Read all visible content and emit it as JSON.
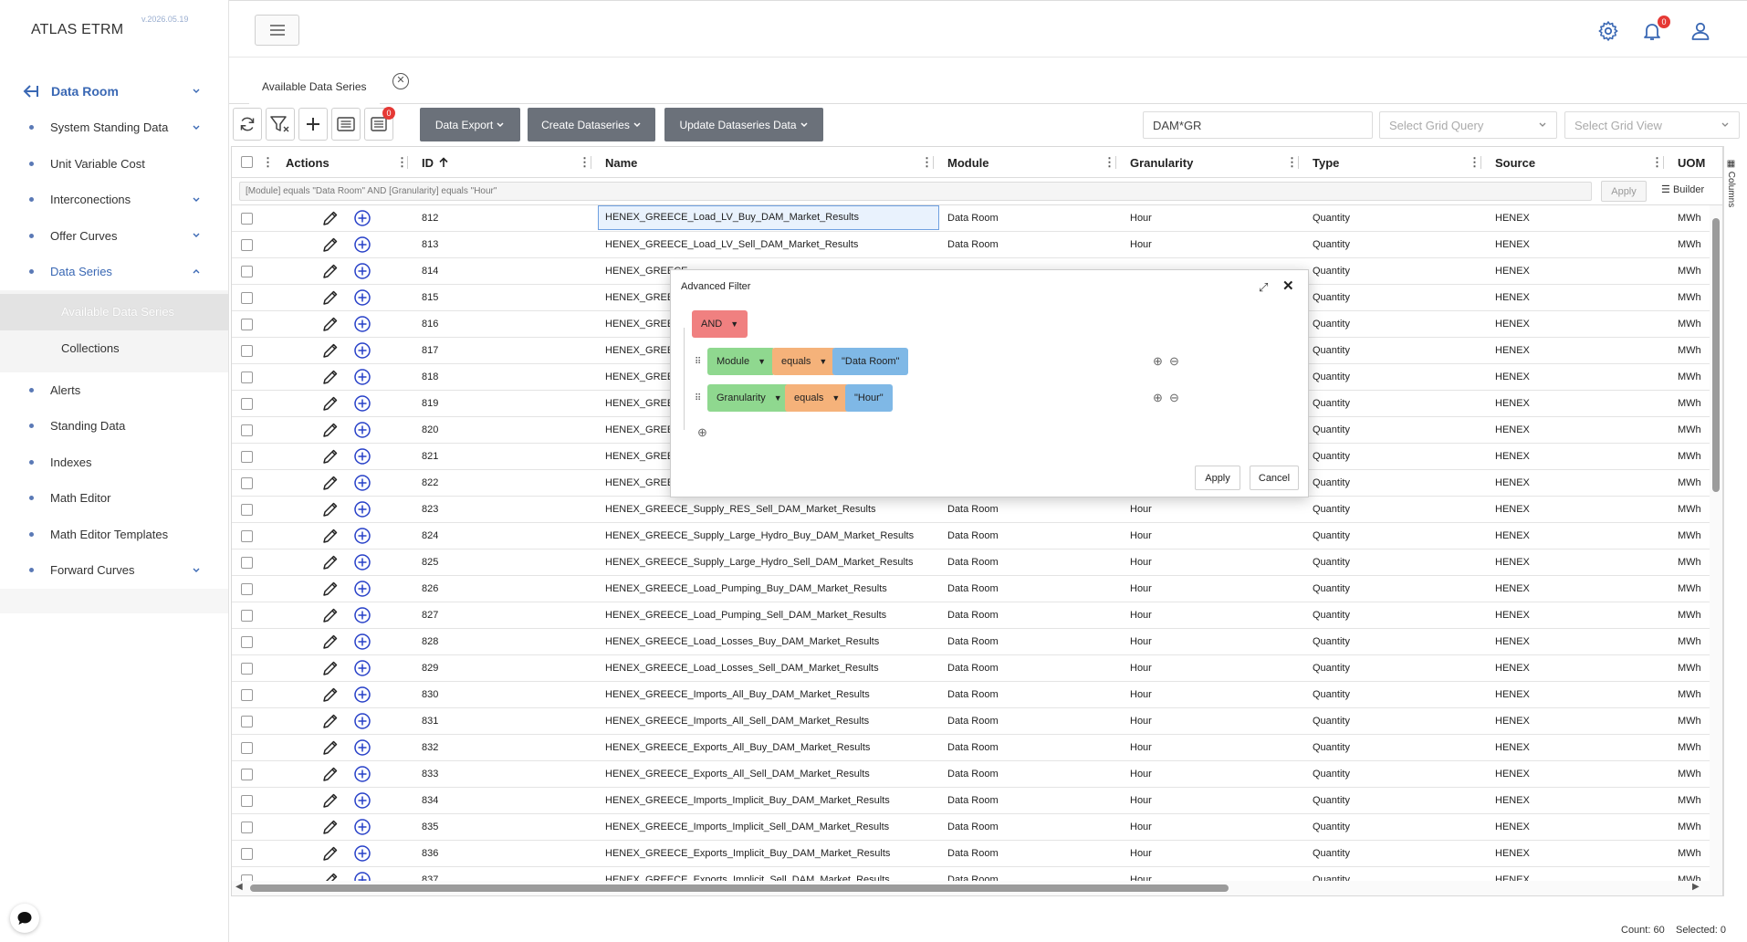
{
  "app": {
    "title": "ATLAS ETRM",
    "version": "v.2026.05.19"
  },
  "colors": {
    "accent": "#3a68b4",
    "filter_and": "#f08080",
    "filter_field": "#8fd88f",
    "filter_op": "#f5b27a",
    "filter_value": "#7fb8e6",
    "badge": "#e53935"
  },
  "sidebar": {
    "root": {
      "label": "Data Room",
      "icon": "back-arrow-icon"
    },
    "items": [
      {
        "label": "System Standing Data",
        "has_children": true
      },
      {
        "label": "Unit Variable Cost",
        "has_children": false
      },
      {
        "label": "Interconections",
        "has_children": true
      },
      {
        "label": "Offer Curves",
        "has_children": true
      },
      {
        "label": "Data Series",
        "has_children": true,
        "expanded": true
      },
      {
        "label": "Alerts",
        "has_children": false
      },
      {
        "label": "Standing Data",
        "has_children": false
      },
      {
        "label": "Indexes",
        "has_children": false
      },
      {
        "label": "Math Editor",
        "has_children": false
      },
      {
        "label": "Math Editor Templates",
        "has_children": false
      },
      {
        "label": "Forward Curves",
        "has_children": true
      }
    ],
    "subitems": [
      {
        "label": "Available Data Series",
        "active": true
      },
      {
        "label": "Collections",
        "active": false
      }
    ]
  },
  "header": {
    "icons": [
      "menu-icon",
      "gear-icon",
      "bell-icon",
      "user-icon"
    ],
    "notification_count": "0"
  },
  "tabs": [
    {
      "label": "Available Data Series",
      "close_icon": "close-circle-icon"
    }
  ],
  "toolbar": {
    "export_badge": "0",
    "buttons": [
      "Data Export",
      "Create Dataseries",
      "Update Dataseries Data"
    ],
    "search_value": "DAM*GR",
    "grid_query_placeholder": "Select Grid Query",
    "grid_view_placeholder": "Select Grid View"
  },
  "grid": {
    "columns": [
      "Actions",
      "ID",
      "Name",
      "Module",
      "Granularity",
      "Type",
      "Source",
      "UOM"
    ],
    "filter_text": "[Module] equals \"Data Room\" AND [Granularity] equals \"Hour\"",
    "filter_apply": "Apply",
    "builder_label": "Builder",
    "columns_panel": "Columns",
    "rows": [
      {
        "id": "812",
        "name": "HENEX_GREECE_Load_LV_Buy_DAM_Market_Results",
        "module": "Data Room",
        "granularity": "Hour",
        "type": "Quantity",
        "source": "HENEX",
        "uom": "MWh"
      },
      {
        "id": "813",
        "name": "HENEX_GREECE_Load_LV_Sell_DAM_Market_Results",
        "module": "Data Room",
        "granularity": "Hour",
        "type": "Quantity",
        "source": "HENEX",
        "uom": "MWh"
      },
      {
        "id": "814",
        "name": "HENEX_GREECE",
        "module": "",
        "granularity": "",
        "type": "Quantity",
        "source": "HENEX",
        "uom": "MWh"
      },
      {
        "id": "815",
        "name": "HENEX_GREECE",
        "module": "",
        "granularity": "",
        "type": "Quantity",
        "source": "HENEX",
        "uom": "MWh"
      },
      {
        "id": "816",
        "name": "HENEX_GREECE",
        "module": "",
        "granularity": "",
        "type": "Quantity",
        "source": "HENEX",
        "uom": "MWh"
      },
      {
        "id": "817",
        "name": "HENEX_GREECE",
        "module": "",
        "granularity": "",
        "type": "Quantity",
        "source": "HENEX",
        "uom": "MWh"
      },
      {
        "id": "818",
        "name": "HENEX_GREECE",
        "module": "",
        "granularity": "",
        "type": "Quantity",
        "source": "HENEX",
        "uom": "MWh"
      },
      {
        "id": "819",
        "name": "HENEX_GREECE",
        "module": "",
        "granularity": "",
        "type": "Quantity",
        "source": "HENEX",
        "uom": "MWh"
      },
      {
        "id": "820",
        "name": "HENEX_GREECE",
        "module": "",
        "granularity": "",
        "type": "Quantity",
        "source": "HENEX",
        "uom": "MWh"
      },
      {
        "id": "821",
        "name": "HENEX_GREECE",
        "module": "",
        "granularity": "",
        "type": "Quantity",
        "source": "HENEX",
        "uom": "MWh"
      },
      {
        "id": "822",
        "name": "HENEX_GREECE",
        "module": "",
        "granularity": "",
        "type": "Quantity",
        "source": "HENEX",
        "uom": "MWh"
      },
      {
        "id": "823",
        "name": "HENEX_GREECE_Supply_RES_Sell_DAM_Market_Results",
        "module": "Data Room",
        "granularity": "Hour",
        "type": "Quantity",
        "source": "HENEX",
        "uom": "MWh"
      },
      {
        "id": "824",
        "name": "HENEX_GREECE_Supply_Large_Hydro_Buy_DAM_Market_Results",
        "module": "Data Room",
        "granularity": "Hour",
        "type": "Quantity",
        "source": "HENEX",
        "uom": "MWh"
      },
      {
        "id": "825",
        "name": "HENEX_GREECE_Supply_Large_Hydro_Sell_DAM_Market_Results",
        "module": "Data Room",
        "granularity": "Hour",
        "type": "Quantity",
        "source": "HENEX",
        "uom": "MWh"
      },
      {
        "id": "826",
        "name": "HENEX_GREECE_Load_Pumping_Buy_DAM_Market_Results",
        "module": "Data Room",
        "granularity": "Hour",
        "type": "Quantity",
        "source": "HENEX",
        "uom": "MWh"
      },
      {
        "id": "827",
        "name": "HENEX_GREECE_Load_Pumping_Sell_DAM_Market_Results",
        "module": "Data Room",
        "granularity": "Hour",
        "type": "Quantity",
        "source": "HENEX",
        "uom": "MWh"
      },
      {
        "id": "828",
        "name": "HENEX_GREECE_Load_Losses_Buy_DAM_Market_Results",
        "module": "Data Room",
        "granularity": "Hour",
        "type": "Quantity",
        "source": "HENEX",
        "uom": "MWh"
      },
      {
        "id": "829",
        "name": "HENEX_GREECE_Load_Losses_Sell_DAM_Market_Results",
        "module": "Data Room",
        "granularity": "Hour",
        "type": "Quantity",
        "source": "HENEX",
        "uom": "MWh"
      },
      {
        "id": "830",
        "name": "HENEX_GREECE_Imports_All_Buy_DAM_Market_Results",
        "module": "Data Room",
        "granularity": "Hour",
        "type": "Quantity",
        "source": "HENEX",
        "uom": "MWh"
      },
      {
        "id": "831",
        "name": "HENEX_GREECE_Imports_All_Sell_DAM_Market_Results",
        "module": "Data Room",
        "granularity": "Hour",
        "type": "Quantity",
        "source": "HENEX",
        "uom": "MWh"
      },
      {
        "id": "832",
        "name": "HENEX_GREECE_Exports_All_Buy_DAM_Market_Results",
        "module": "Data Room",
        "granularity": "Hour",
        "type": "Quantity",
        "source": "HENEX",
        "uom": "MWh"
      },
      {
        "id": "833",
        "name": "HENEX_GREECE_Exports_All_Sell_DAM_Market_Results",
        "module": "Data Room",
        "granularity": "Hour",
        "type": "Quantity",
        "source": "HENEX",
        "uom": "MWh"
      },
      {
        "id": "834",
        "name": "HENEX_GREECE_Imports_Implicit_Buy_DAM_Market_Results",
        "module": "Data Room",
        "granularity": "Hour",
        "type": "Quantity",
        "source": "HENEX",
        "uom": "MWh"
      },
      {
        "id": "835",
        "name": "HENEX_GREECE_Imports_Implicit_Sell_DAM_Market_Results",
        "module": "Data Room",
        "granularity": "Hour",
        "type": "Quantity",
        "source": "HENEX",
        "uom": "MWh"
      },
      {
        "id": "836",
        "name": "HENEX_GREECE_Exports_Implicit_Buy_DAM_Market_Results",
        "module": "Data Room",
        "granularity": "Hour",
        "type": "Quantity",
        "source": "HENEX",
        "uom": "MWh"
      },
      {
        "id": "837",
        "name": "HENEX_GREECE_Exports_Implicit_Sell_DAM_Market_Results",
        "module": "Data Room",
        "granularity": "Hour",
        "type": "Quantity",
        "source": "HENEX",
        "uom": "MWh"
      }
    ]
  },
  "status": {
    "count": "Count: 60",
    "selected": "Selected: 0"
  },
  "dialog": {
    "title": "Advanced Filter",
    "conjunction": "AND",
    "rules": [
      {
        "field": "Module",
        "operator": "equals",
        "value": "\"Data Room\""
      },
      {
        "field": "Granularity",
        "operator": "equals",
        "value": "\"Hour\""
      }
    ],
    "apply": "Apply",
    "cancel": "Cancel"
  }
}
